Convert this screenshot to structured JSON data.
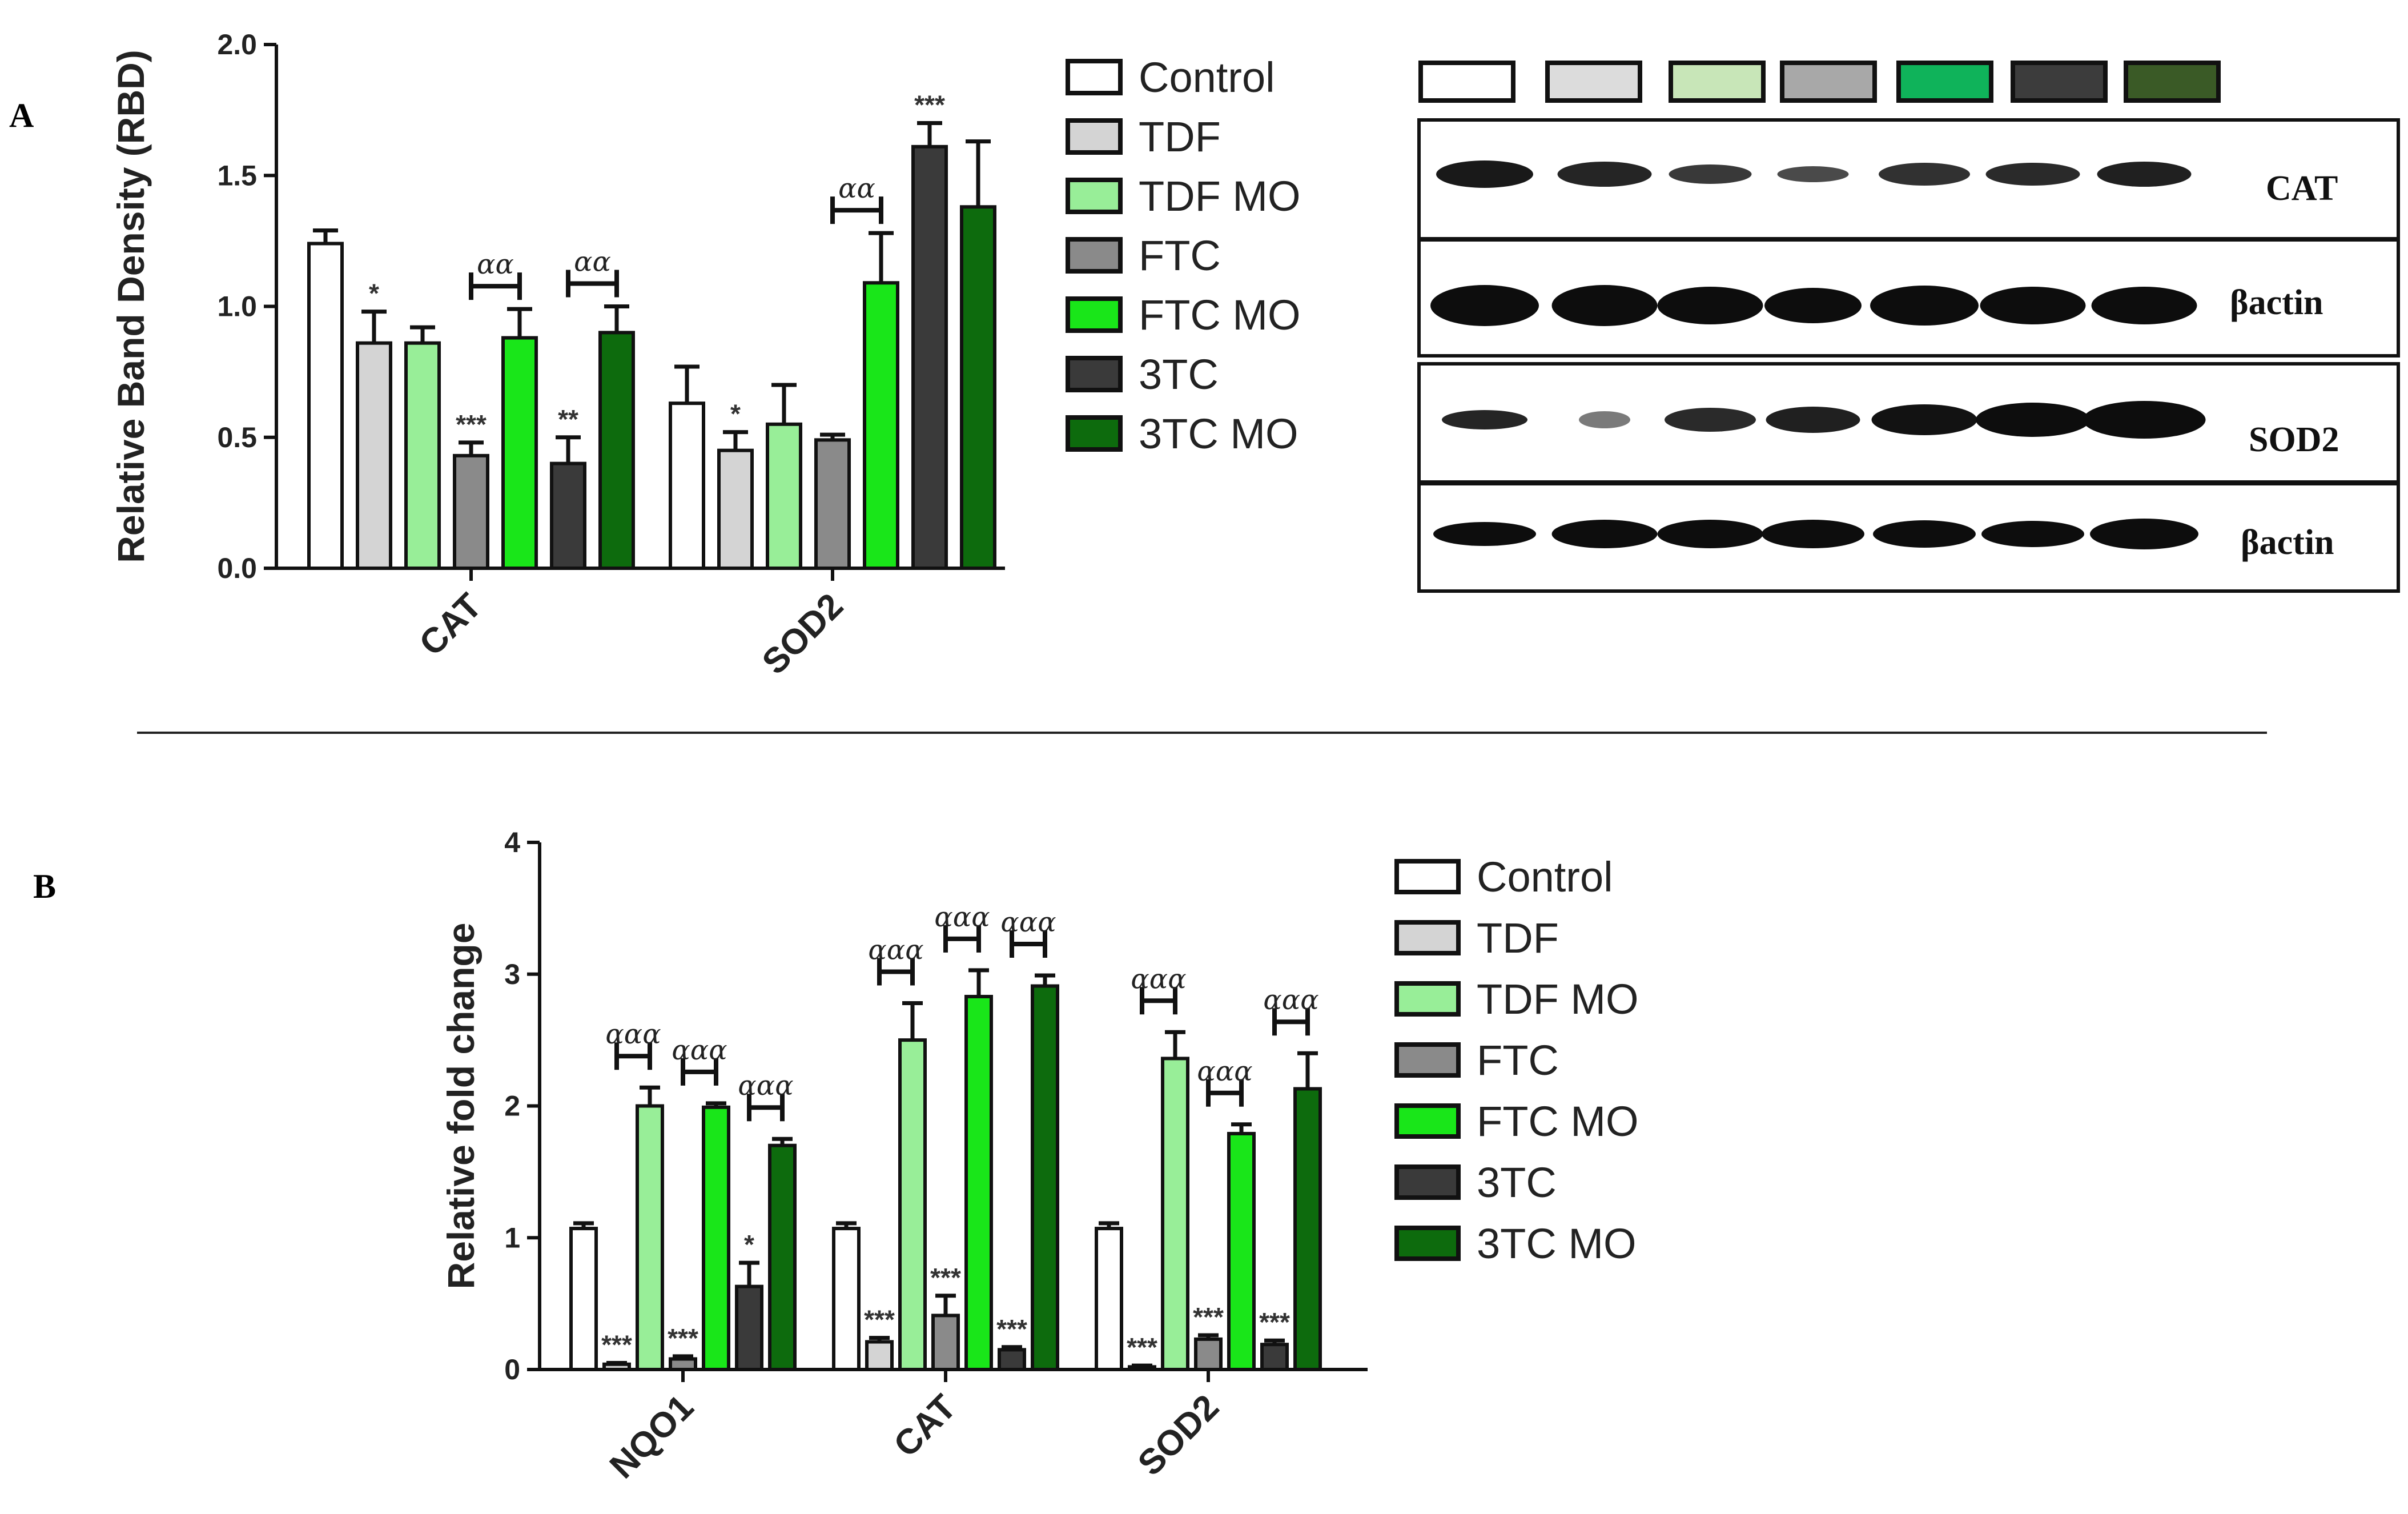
{
  "panels": {
    "a_label": "A",
    "b_label": "B"
  },
  "groups": [
    "Control",
    "TDF",
    "TDF MO",
    "FTC",
    "FTC MO",
    "3TC",
    "3TC MO"
  ],
  "group_colors": [
    "#ffffff",
    "#d4d4d4",
    "#98ee98",
    "#8a8a8a",
    "#19e619",
    "#3a3a3a",
    "#0d6b0d"
  ],
  "blot_swatch_colors": [
    "#ffffff",
    "#dcdcdc",
    "#c8e6b8",
    "#a8a8a8",
    "#0fb35a",
    "#3c3c3c",
    "#3a5a26"
  ],
  "blot": {
    "label_cat": "CAT",
    "label_actin_1": "βactin",
    "label_sod2": "SOD2",
    "label_actin_2": "βactin"
  },
  "chart_data": [
    {
      "type": "bar",
      "panel": "A",
      "categories": [
        "CAT",
        "SOD2"
      ],
      "ylabel": "Relative Band Density (RBD)",
      "xlabel": "",
      "ylim": [
        0,
        2.0
      ],
      "yticks": [
        "0.0",
        "0.5",
        "1.0",
        "1.5",
        "2.0"
      ],
      "series": [
        {
          "name": "Control",
          "values": [
            1.24,
            0.63
          ],
          "errors": [
            0.05,
            0.14
          ]
        },
        {
          "name": "TDF",
          "values": [
            0.86,
            0.45
          ],
          "errors": [
            0.12,
            0.07
          ]
        },
        {
          "name": "TDF MO",
          "values": [
            0.86,
            0.55
          ],
          "errors": [
            0.06,
            0.15
          ]
        },
        {
          "name": "FTC",
          "values": [
            0.43,
            0.49
          ],
          "errors": [
            0.05,
            0.02
          ]
        },
        {
          "name": "FTC MO",
          "values": [
            0.88,
            1.09
          ],
          "errors": [
            0.11,
            0.19
          ]
        },
        {
          "name": "3TC",
          "values": [
            0.4,
            1.61
          ],
          "errors": [
            0.1,
            0.09
          ]
        },
        {
          "name": "3TC MO",
          "values": [
            0.9,
            1.38
          ],
          "errors": [
            0.1,
            0.25
          ]
        }
      ],
      "significance": [
        {
          "category": "CAT",
          "group": "TDF",
          "text": "*"
        },
        {
          "category": "CAT",
          "group": "FTC",
          "text": "***"
        },
        {
          "category": "CAT",
          "group": "3TC",
          "text": "**"
        },
        {
          "category": "SOD2",
          "group": "TDF",
          "text": "*"
        },
        {
          "category": "SOD2",
          "group": "3TC",
          "text": "***"
        }
      ],
      "brackets": [
        {
          "category": "CAT",
          "from": "FTC",
          "to": "FTC MO",
          "text": "αα"
        },
        {
          "category": "CAT",
          "from": "3TC",
          "to": "3TC MO",
          "text": "αα"
        },
        {
          "category": "SOD2",
          "from": "FTC",
          "to": "FTC MO",
          "text": "αα"
        }
      ]
    },
    {
      "type": "bar",
      "panel": "B",
      "categories": [
        "NQO1",
        "CAT",
        "SOD2"
      ],
      "ylabel": "Relative fold change",
      "xlabel": "",
      "ylim": [
        0,
        4
      ],
      "yticks": [
        "0",
        "1",
        "2",
        "3",
        "4"
      ],
      "series": [
        {
          "name": "Control",
          "values": [
            1.07,
            1.07,
            1.07
          ],
          "errors": [
            0.04,
            0.04,
            0.04
          ]
        },
        {
          "name": "TDF",
          "values": [
            0.04,
            0.21,
            0.02
          ],
          "errors": [
            0.01,
            0.03,
            0.01
          ]
        },
        {
          "name": "TDF MO",
          "values": [
            2.0,
            2.5,
            2.36
          ],
          "errors": [
            0.14,
            0.28,
            0.2
          ]
        },
        {
          "name": "FTC",
          "values": [
            0.08,
            0.41,
            0.23
          ],
          "errors": [
            0.02,
            0.15,
            0.03
          ]
        },
        {
          "name": "FTC MO",
          "values": [
            1.99,
            2.83,
            1.79
          ],
          "errors": [
            0.03,
            0.2,
            0.07
          ]
        },
        {
          "name": "3TC",
          "values": [
            0.63,
            0.15,
            0.19
          ],
          "errors": [
            0.18,
            0.02,
            0.03
          ]
        },
        {
          "name": "3TC MO",
          "values": [
            1.7,
            2.91,
            2.13
          ],
          "errors": [
            0.05,
            0.08,
            0.27
          ]
        }
      ],
      "significance": [
        {
          "category": "NQO1",
          "group": "TDF",
          "text": "***"
        },
        {
          "category": "NQO1",
          "group": "FTC",
          "text": "***"
        },
        {
          "category": "NQO1",
          "group": "3TC",
          "text": "*"
        },
        {
          "category": "CAT",
          "group": "TDF",
          "text": "***"
        },
        {
          "category": "CAT",
          "group": "FTC",
          "text": "***"
        },
        {
          "category": "CAT",
          "group": "3TC",
          "text": "***"
        },
        {
          "category": "SOD2",
          "group": "TDF",
          "text": "***"
        },
        {
          "category": "SOD2",
          "group": "FTC",
          "text": "***"
        },
        {
          "category": "SOD2",
          "group": "3TC",
          "text": "***"
        }
      ],
      "brackets": [
        {
          "category": "NQO1",
          "from": "TDF",
          "to": "TDF MO",
          "text": "ααα"
        },
        {
          "category": "NQO1",
          "from": "FTC",
          "to": "FTC MO",
          "text": "ααα"
        },
        {
          "category": "NQO1",
          "from": "3TC",
          "to": "3TC MO",
          "text": "ααα"
        },
        {
          "category": "CAT",
          "from": "TDF",
          "to": "TDF MO",
          "text": "ααα"
        },
        {
          "category": "CAT",
          "from": "FTC",
          "to": "FTC MO",
          "text": "ααα"
        },
        {
          "category": "CAT",
          "from": "3TC",
          "to": "3TC MO",
          "text": "ααα"
        },
        {
          "category": "SOD2",
          "from": "TDF",
          "to": "TDF MO",
          "text": "ααα"
        },
        {
          "category": "SOD2",
          "from": "FTC",
          "to": "FTC MO",
          "text": "ααα"
        },
        {
          "category": "SOD2",
          "from": "3TC",
          "to": "3TC MO",
          "text": "ααα"
        }
      ]
    }
  ]
}
